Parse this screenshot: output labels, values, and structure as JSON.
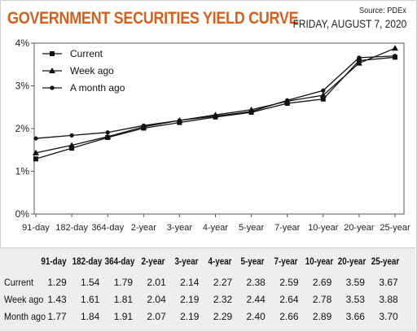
{
  "header": {
    "title": "GOVERNMENT SECURITIES YIELD CURVE",
    "source": "Source: PDEx",
    "date": "FRIDAY, AUGUST 7, 2020"
  },
  "colors": {
    "title": "#d2611f",
    "line": "#111111",
    "table_bg": "#eeeeee"
  },
  "chart_data": {
    "type": "line",
    "title": "GOVERNMENT SECURITIES YIELD CURVE",
    "categories": [
      "91-day",
      "182-day",
      "364-day",
      "2-year",
      "3-year",
      "4-year",
      "5-year",
      "7-year",
      "10-year",
      "20-year",
      "25-year"
    ],
    "yticks": [
      "0%",
      "1%",
      "2%",
      "3%",
      "4%"
    ],
    "ylim": [
      0,
      4
    ],
    "grid": false,
    "legend_position": "top-left",
    "series": [
      {
        "name": "Current",
        "marker": "square",
        "values": [
          1.29,
          1.54,
          1.79,
          2.01,
          2.14,
          2.27,
          2.38,
          2.59,
          2.69,
          3.59,
          3.67
        ]
      },
      {
        "name": "Week ago",
        "marker": "triangle",
        "values": [
          1.43,
          1.61,
          1.81,
          2.04,
          2.19,
          2.32,
          2.44,
          2.64,
          2.78,
          3.53,
          3.88
        ]
      },
      {
        "name": "A month ago",
        "marker": "circle",
        "values": [
          1.77,
          1.84,
          1.91,
          2.07,
          2.19,
          2.29,
          2.4,
          2.66,
          2.89,
          3.66,
          3.7
        ]
      }
    ]
  },
  "table": {
    "headers": [
      "91-day",
      "182-day",
      "364-day",
      "2-year",
      "3-year",
      "4-year",
      "5-year",
      "7-year",
      "10-year",
      "20-year",
      "25-year"
    ],
    "rows": [
      {
        "label": "Current",
        "values": [
          "1.29",
          "1.54",
          "1.79",
          "2.01",
          "2.14",
          "2.27",
          "2.38",
          "2.59",
          "2.69",
          "3.59",
          "3.67"
        ]
      },
      {
        "label": "Week ago",
        "values": [
          "1.43",
          "1.61",
          "1.81",
          "2.04",
          "2.19",
          "2.32",
          "2.44",
          "2.64",
          "2.78",
          "3.53",
          "3.88"
        ]
      },
      {
        "label": "Month ago",
        "values": [
          "1.77",
          "1.84",
          "1.91",
          "2.07",
          "2.19",
          "2.29",
          "2.40",
          "2.66",
          "2.89",
          "3.66",
          "3.70"
        ]
      }
    ]
  }
}
